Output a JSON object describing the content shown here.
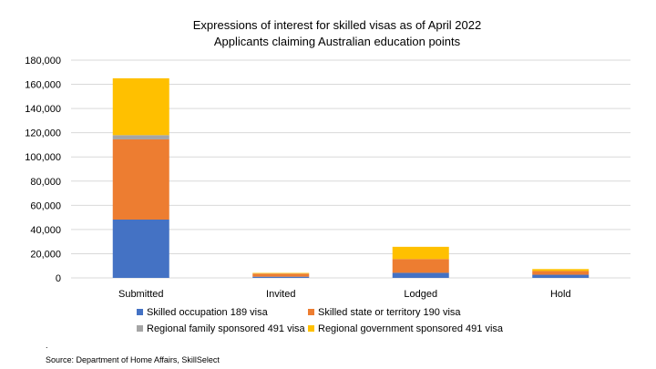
{
  "chart_data": {
    "type": "bar",
    "stacked": true,
    "title": "Expressions of interest for skilled visas as of April 2022",
    "subtitle": "Applicants claiming Australian education points",
    "xlabel": "",
    "ylabel": "",
    "ylim": [
      0,
      180000
    ],
    "yticks": [
      "0",
      "20,000",
      "40,000",
      "60,000",
      "80,000",
      "100,000",
      "120,000",
      "140,000",
      "160,000",
      "180,000"
    ],
    "grid": true,
    "legend_position": "bottom",
    "categories": [
      "Submitted",
      "Invited",
      "Lodged",
      "Hold"
    ],
    "series": [
      {
        "name": "Skilled occupation 189 visa",
        "color": "#4472c4",
        "values": [
          48200,
          1000,
          4200,
          2600
        ]
      },
      {
        "name": "Skilled state or territory 190 visa",
        "color": "#ed7d31",
        "values": [
          66300,
          2500,
          11400,
          3100
        ]
      },
      {
        "name": "Regional family sponsored  491 visa",
        "color": "#a5a5a5",
        "values": [
          3500,
          100,
          0,
          0
        ]
      },
      {
        "name": "Regional government sponsored 491 visa",
        "color": "#ffc000",
        "values": [
          47000,
          500,
          10100,
          1600
        ]
      }
    ]
  },
  "footer": {
    "dot": ".",
    "source": "Source: Department of Home Affairs, SkillSelect"
  }
}
